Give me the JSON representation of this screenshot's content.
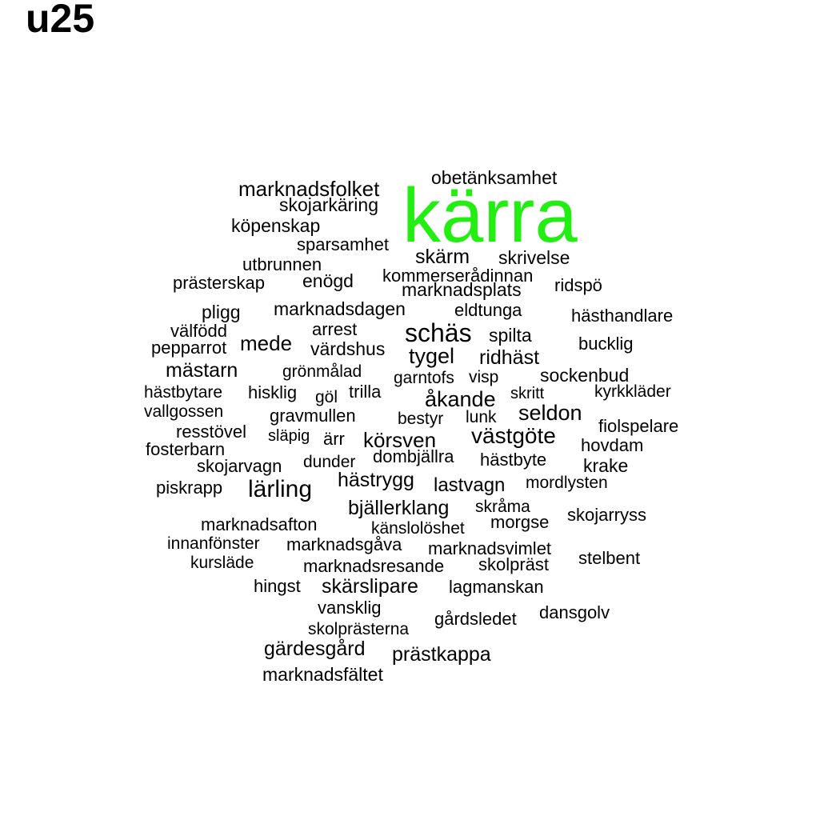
{
  "title": "u25",
  "colors": {
    "highlight": "#22ee11",
    "text": "#000000"
  },
  "words": [
    "kärra",
    "obetänksamhet",
    "marknadsfolket",
    "skojarkäring",
    "köpenskap",
    "sparsamhet",
    "skärm",
    "skrivelse",
    "utbrunnen",
    "kommerserådinnan",
    "prästerskap",
    "enögd",
    "marknadsplats",
    "ridspö",
    "marknadsdagen",
    "eldtunga",
    "pligg",
    "hästhandlare",
    "arrest",
    "välfödd",
    "schäs",
    "spilta",
    "mede",
    "pepparrot",
    "värdshus",
    "bucklig",
    "tygel",
    "ridhäst",
    "mästarn",
    "grönmålad",
    "sockenbud",
    "garntofs",
    "visp",
    "hästbytare",
    "hisklig",
    "göl",
    "trilla",
    "kyrkkläder",
    "åkande",
    "skritt",
    "vallgossen",
    "gravmullen",
    "seldon",
    "bestyr",
    "lunk",
    "fiolspelare",
    "resstövel",
    "västgöte",
    "släpig",
    "ärr",
    "körsven",
    "hovdam",
    "fosterbarn",
    "dombjällra",
    "hästbyte",
    "skojarvagn",
    "dunder",
    "krake",
    "hästrygg",
    "mordlysten",
    "piskrapp",
    "lärling",
    "lastvagn",
    "bjällerklang",
    "skråma",
    "skojarryss",
    "marknadsafton",
    "morgse",
    "känslolöshet",
    "innanfönster",
    "marknadsgåva",
    "marknadsvimlet",
    "kursläde",
    "stelbent",
    "marknadsresande",
    "skolpräst",
    "hingst",
    "skärslipare",
    "lagmanskan",
    "vansklig",
    "dansgolv",
    "gårdsledet",
    "skolprästerna",
    "gärdesgård",
    "prästkappa",
    "marknadsfältet"
  ]
}
